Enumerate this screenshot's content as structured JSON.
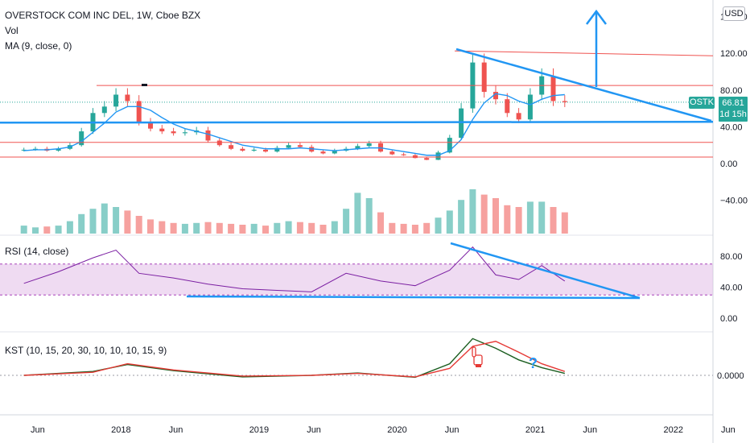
{
  "header": {
    "title": "OVERSTOCK COM INC DEL, 1W, Cboe BZX",
    "vol_label": "Vol",
    "ma_label": "MA (9, close, 0)"
  },
  "currency_button": "USD",
  "price_badge": {
    "symbol": "OSTK",
    "price": "66.81",
    "countdown": "1d 15h"
  },
  "rsi_label": "RSI (14, close)",
  "kst_label": "KST (10, 15, 20, 30, 10, 10, 10, 15, 9)",
  "price_axis_ticks": [
    "160.00",
    "120.00",
    "80.00",
    "40.00",
    "0.00",
    "−40.00"
  ],
  "rsi_axis_ticks": [
    "80.00",
    "40.00",
    "0.00"
  ],
  "kst_axis_ticks": [
    "0.0000"
  ],
  "time_axis_ticks": [
    "Jun",
    "2018",
    "Jun",
    "2019",
    "Jun",
    "2020",
    "Jun",
    "2021",
    "Jun",
    "2022",
    "Jun"
  ],
  "annotation_question": "?",
  "colors": {
    "up": "#26a69a",
    "down": "#ef5350",
    "trend": "#2196f3",
    "ma": "#2196f3",
    "rsi_line": "#7b1fa2",
    "rsi_band": "#e1bee7",
    "kst_line": "#1b5e20",
    "kst_signal": "#e53935",
    "resistance": "#ef5350"
  },
  "chart_data": [
    {
      "type": "candlestick",
      "title": "OVERSTOCK COM INC DEL, 1W, Cboe BZX",
      "symbol": "OSTK",
      "last_price": 66.81,
      "x": [
        "2017-05",
        "2017-06",
        "2017-07",
        "2017-08",
        "2017-09",
        "2017-10",
        "2017-11",
        "2017-12",
        "2018-01",
        "2018-02",
        "2018-03",
        "2018-04",
        "2018-05",
        "2018-06",
        "2018-07",
        "2018-08",
        "2018-09",
        "2018-10",
        "2018-11",
        "2018-12",
        "2019-01",
        "2019-02",
        "2019-03",
        "2019-04",
        "2019-05",
        "2019-06",
        "2019-07",
        "2019-08",
        "2019-09",
        "2019-10",
        "2019-11",
        "2019-12",
        "2020-01",
        "2020-02",
        "2020-03",
        "2020-04",
        "2020-05",
        "2020-06",
        "2020-07",
        "2020-08",
        "2020-09",
        "2020-10",
        "2020-11",
        "2020-12",
        "2021-01",
        "2021-02",
        "2021-03",
        "2021-04"
      ],
      "close": [
        15,
        16,
        14,
        16,
        20,
        35,
        55,
        62,
        75,
        68,
        45,
        38,
        35,
        33,
        34,
        36,
        25,
        20,
        16,
        14,
        15,
        13,
        17,
        20,
        18,
        13,
        11,
        14,
        16,
        19,
        22,
        13,
        10,
        9,
        6,
        4,
        12,
        28,
        60,
        110,
        78,
        70,
        55,
        48,
        75,
        95,
        68,
        66.81
      ],
      "volume": [
        9,
        7,
        8,
        9,
        14,
        22,
        28,
        34,
        30,
        26,
        20,
        16,
        14,
        12,
        11,
        12,
        13,
        12,
        11,
        10,
        11,
        9,
        12,
        14,
        13,
        12,
        10,
        14,
        28,
        46,
        40,
        24,
        12,
        11,
        10,
        12,
        18,
        26,
        38,
        50,
        44,
        40,
        32,
        30,
        36,
        36,
        30,
        24
      ],
      "ma": {
        "name": "MA (9, close, 0)",
        "values": [
          14,
          15,
          15,
          16,
          18,
          24,
          34,
          44,
          56,
          62,
          62,
          58,
          50,
          43,
          38,
          35,
          32,
          28,
          24,
          20,
          18,
          16,
          16,
          16,
          17,
          16,
          15,
          14,
          15,
          16,
          17,
          17,
          15,
          13,
          11,
          9,
          9,
          14,
          26,
          48,
          66,
          76,
          74,
          68,
          64,
          70,
          74,
          75
        ]
      },
      "resistance_levels": [
        120,
        85,
        23,
        7
      ],
      "support_level": 48,
      "ylim": [
        -60,
        175
      ]
    },
    {
      "type": "line",
      "title": "RSI (14, close)",
      "x": [
        "2017-05",
        "2017-08",
        "2017-11",
        "2018-01",
        "2018-03",
        "2018-06",
        "2018-09",
        "2018-12",
        "2019-03",
        "2019-06",
        "2019-09",
        "2019-12",
        "2020-03",
        "2020-06",
        "2020-08",
        "2020-10",
        "2020-12",
        "2021-02",
        "2021-04"
      ],
      "values": [
        45,
        60,
        78,
        88,
        58,
        52,
        44,
        38,
        36,
        34,
        58,
        48,
        42,
        62,
        92,
        56,
        50,
        68,
        48
      ],
      "band": [
        30,
        70
      ],
      "ylim": [
        -20,
        105
      ]
    },
    {
      "type": "line",
      "title": "KST (10, 15, 20, 30, 10, 10, 10, 15, 9)",
      "x": [
        "2017-05",
        "2017-11",
        "2018-02",
        "2018-06",
        "2018-12",
        "2019-06",
        "2019-10",
        "2020-03",
        "2020-06",
        "2020-08",
        "2020-10",
        "2020-12",
        "2021-02",
        "2021-04"
      ],
      "series": [
        {
          "values": [
            0,
            10,
            28,
            12,
            -4,
            0,
            6,
            -5,
            30,
            95,
            70,
            40,
            20,
            5
          ]
        },
        {
          "values": [
            0,
            8,
            30,
            14,
            -2,
            0,
            5,
            -4,
            18,
            75,
            88,
            60,
            30,
            10
          ]
        }
      ]
    }
  ]
}
